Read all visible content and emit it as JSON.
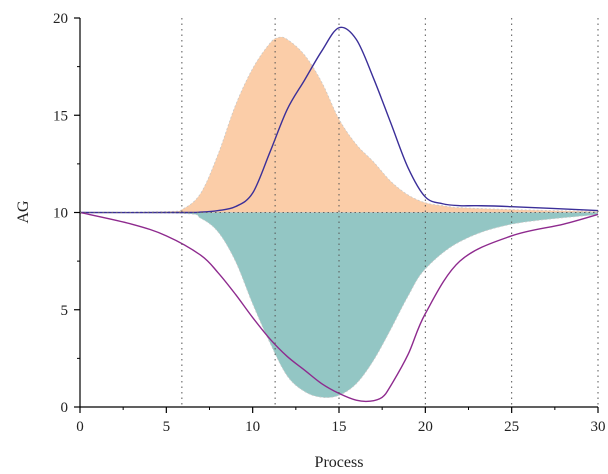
{
  "chart_data": {
    "type": "area",
    "title": "",
    "xlabel": "Process",
    "ylabel": "AG",
    "xlim": [
      0,
      30
    ],
    "ylim": [
      0,
      20
    ],
    "xticks": [
      0,
      5,
      10,
      15,
      20,
      25,
      30
    ],
    "yticks": [
      0,
      5,
      10,
      15,
      20
    ],
    "baseline": 10,
    "grid": "dotted vertical lines",
    "vlines": [
      5.9,
      11.3,
      15.0,
      20.0,
      25.0,
      30.0
    ],
    "series": [
      {
        "kind": "area",
        "color": "#fbcda8",
        "x": [
          0,
          5,
          6,
          7,
          8,
          9,
          10,
          11,
          11.5,
          12,
          13,
          14,
          15,
          16,
          17,
          18,
          19,
          20,
          21,
          22,
          25,
          30
        ],
        "y": [
          10.0,
          10.05,
          10.2,
          11.0,
          13.0,
          15.5,
          17.4,
          18.7,
          19.0,
          18.9,
          18.1,
          16.7,
          14.8,
          13.5,
          12.6,
          11.6,
          10.9,
          10.5,
          10.35,
          10.25,
          10.15,
          10.05
        ]
      },
      {
        "kind": "area",
        "color": "#93c6c4",
        "x": [
          0,
          6,
          7,
          8,
          9,
          10,
          11,
          12,
          13,
          14,
          15,
          16,
          17,
          18,
          19,
          20,
          22,
          25,
          30
        ],
        "y": [
          10.0,
          9.95,
          9.7,
          9.0,
          7.5,
          5.3,
          3.3,
          1.6,
          0.8,
          0.5,
          0.6,
          1.2,
          2.4,
          4.0,
          5.7,
          7.1,
          8.5,
          9.4,
          9.9
        ]
      },
      {
        "kind": "line",
        "color": "#3b2f99",
        "x": [
          0,
          6,
          7,
          8,
          9,
          10,
          11,
          12,
          13,
          14,
          15,
          16,
          17,
          18,
          19,
          20,
          21,
          22,
          23,
          25,
          30
        ],
        "y": [
          10.0,
          10.0,
          10.02,
          10.1,
          10.3,
          11.0,
          13.1,
          15.3,
          16.8,
          18.3,
          19.5,
          18.9,
          16.9,
          14.6,
          12.3,
          10.8,
          10.45,
          10.35,
          10.35,
          10.3,
          10.1
        ]
      },
      {
        "kind": "line",
        "color": "#8e2a8e",
        "x": [
          0,
          3,
          5,
          7,
          8,
          9,
          10,
          11,
          12,
          13,
          14,
          15,
          16,
          16.8,
          17.5,
          18,
          19,
          20,
          22,
          25,
          28,
          30
        ],
        "y": [
          10.0,
          9.4,
          8.8,
          7.8,
          6.9,
          5.8,
          4.6,
          3.5,
          2.6,
          1.9,
          1.2,
          0.7,
          0.35,
          0.3,
          0.5,
          1.1,
          2.7,
          4.8,
          7.5,
          8.8,
          9.4,
          9.9
        ]
      }
    ]
  }
}
